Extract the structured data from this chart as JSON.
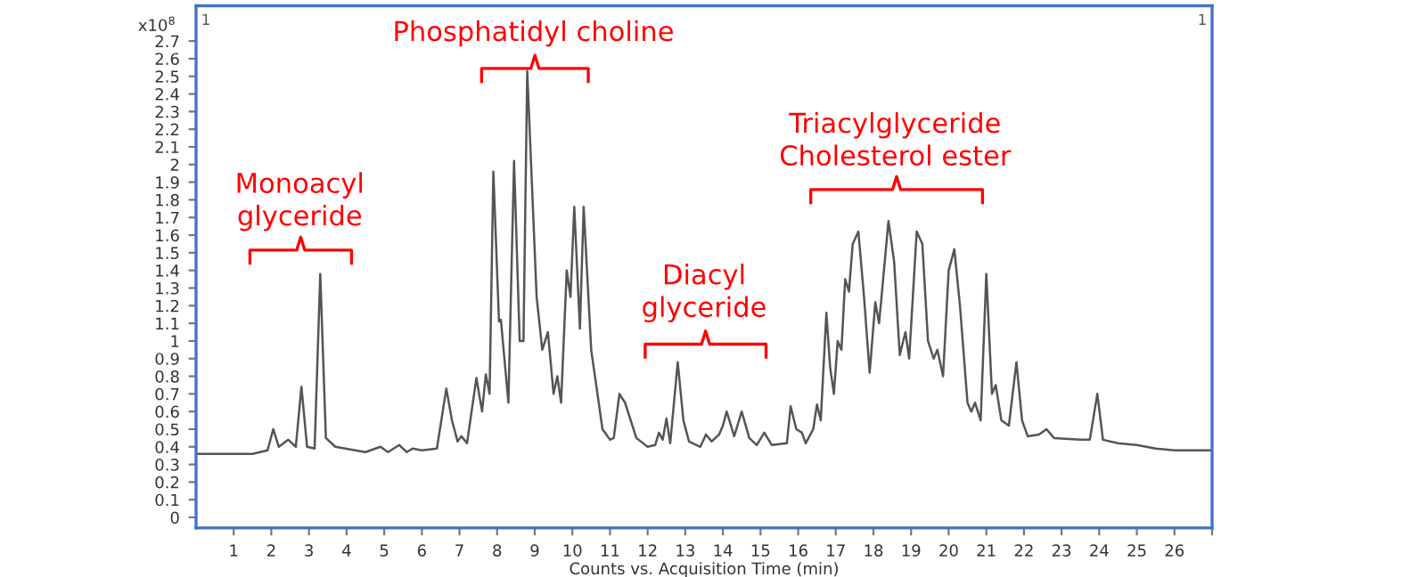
{
  "chart_data": {
    "type": "line",
    "xlabel": "Counts vs. Acquisition Time (min)",
    "ylabel": "x10$^{8}$",
    "annotations": [
      "Monoacyl\nglyceride",
      "Phosphatidyl choline",
      "Diacyl\nglyceride",
      "Triacylglyceride\nCholesterol ester",
      "1",
      "1"
    ],
    "series": [
      {
        "color": "#555555",
        "x": [
          0.0,
          1.0,
          1.5,
          1.9,
          2.05,
          2.2,
          2.45,
          2.65,
          2.8,
          2.95,
          3.15,
          3.3,
          3.45,
          3.7,
          4.5,
          4.9,
          5.1,
          5.4,
          5.6,
          5.75,
          6.0,
          6.4,
          6.65,
          6.8,
          6.95,
          7.05,
          7.2,
          7.45,
          7.6,
          7.7,
          7.8,
          7.9,
          8.05,
          8.1,
          8.3,
          8.45,
          8.6,
          8.7,
          8.8,
          9.05,
          9.2,
          9.35,
          9.5,
          9.6,
          9.7,
          9.85,
          9.95,
          10.05,
          10.2,
          10.3,
          10.5,
          10.8,
          11.0,
          11.1,
          11.25,
          11.4,
          11.7,
          12.0,
          12.2,
          12.3,
          12.4,
          12.5,
          12.6,
          12.8,
          12.95,
          13.1,
          13.4,
          13.55,
          13.7,
          13.9,
          14.0,
          14.1,
          14.3,
          14.5,
          14.7,
          14.9,
          15.1,
          15.3,
          15.7,
          15.8,
          15.95,
          16.1,
          16.2,
          16.4,
          16.5,
          16.6,
          16.75,
          16.85,
          16.95,
          17.05,
          17.15,
          17.25,
          17.35,
          17.45,
          17.6,
          17.75,
          17.9,
          18.05,
          18.15,
          18.4,
          18.55,
          18.7,
          18.85,
          18.95,
          19.15,
          19.3,
          19.45,
          19.6,
          19.7,
          19.85,
          20.0,
          20.15,
          20.3,
          20.5,
          20.6,
          20.7,
          20.85,
          21.0,
          21.15,
          21.25,
          21.4,
          21.6,
          21.8,
          21.95,
          22.1,
          22.4,
          22.6,
          22.8,
          23.5,
          23.75,
          23.95,
          24.1,
          24.5,
          25.0,
          25.5,
          26.0,
          27.0
        ],
        "values": [
          0.36,
          0.36,
          0.36,
          0.38,
          0.5,
          0.4,
          0.44,
          0.4,
          0.74,
          0.4,
          0.39,
          1.38,
          0.45,
          0.4,
          0.37,
          0.4,
          0.37,
          0.41,
          0.37,
          0.39,
          0.38,
          0.39,
          0.73,
          0.55,
          0.43,
          0.46,
          0.42,
          0.79,
          0.6,
          0.81,
          0.7,
          1.96,
          1.11,
          1.12,
          0.65,
          2.02,
          1.0,
          1.0,
          2.53,
          1.25,
          0.95,
          1.05,
          0.7,
          0.8,
          0.65,
          1.4,
          1.25,
          1.76,
          1.07,
          1.76,
          0.95,
          0.5,
          0.44,
          0.45,
          0.7,
          0.65,
          0.45,
          0.4,
          0.41,
          0.48,
          0.44,
          0.56,
          0.42,
          0.88,
          0.55,
          0.43,
          0.4,
          0.47,
          0.43,
          0.47,
          0.52,
          0.6,
          0.46,
          0.6,
          0.45,
          0.41,
          0.48,
          0.41,
          0.42,
          0.63,
          0.5,
          0.48,
          0.42,
          0.5,
          0.64,
          0.55,
          1.16,
          0.85,
          0.7,
          1.0,
          0.95,
          1.35,
          1.28,
          1.55,
          1.62,
          1.25,
          0.82,
          1.22,
          1.1,
          1.68,
          1.45,
          0.92,
          1.05,
          0.9,
          1.62,
          1.55,
          1.0,
          0.9,
          0.95,
          0.8,
          1.4,
          1.52,
          1.2,
          0.65,
          0.6,
          0.65,
          0.55,
          1.38,
          0.7,
          0.75,
          0.55,
          0.52,
          0.88,
          0.55,
          0.46,
          0.47,
          0.5,
          0.45,
          0.44,
          0.44,
          0.7,
          0.44,
          0.42,
          0.41,
          0.39,
          0.38,
          0.38
        ]
      }
    ],
    "xlim": [
      0,
      27
    ],
    "xticks": [
      1,
      2,
      3,
      4,
      5,
      6,
      7,
      8,
      9,
      10,
      11,
      12,
      13,
      14,
      15,
      16,
      17,
      18,
      19,
      20,
      21,
      22,
      23,
      24,
      25,
      26,
      {
        "value": 27,
        "label": null
      }
    ],
    "ylim": [
      -0.06,
      2.9
    ],
    "yticks": [
      0,
      0.1,
      0.2,
      0.3,
      0.4,
      0.5,
      0.6,
      0.7,
      0.8,
      0.9,
      1,
      1.1,
      1.2,
      1.3,
      1.4,
      1.5,
      1.6,
      1.7,
      1.8,
      1.9,
      2,
      2.1,
      2.2,
      2.3,
      2.4,
      2.5,
      2.6,
      2.7
    ],
    "grid": false,
    "legend": false,
    "marker": "none",
    "line_style": "solid"
  }
}
